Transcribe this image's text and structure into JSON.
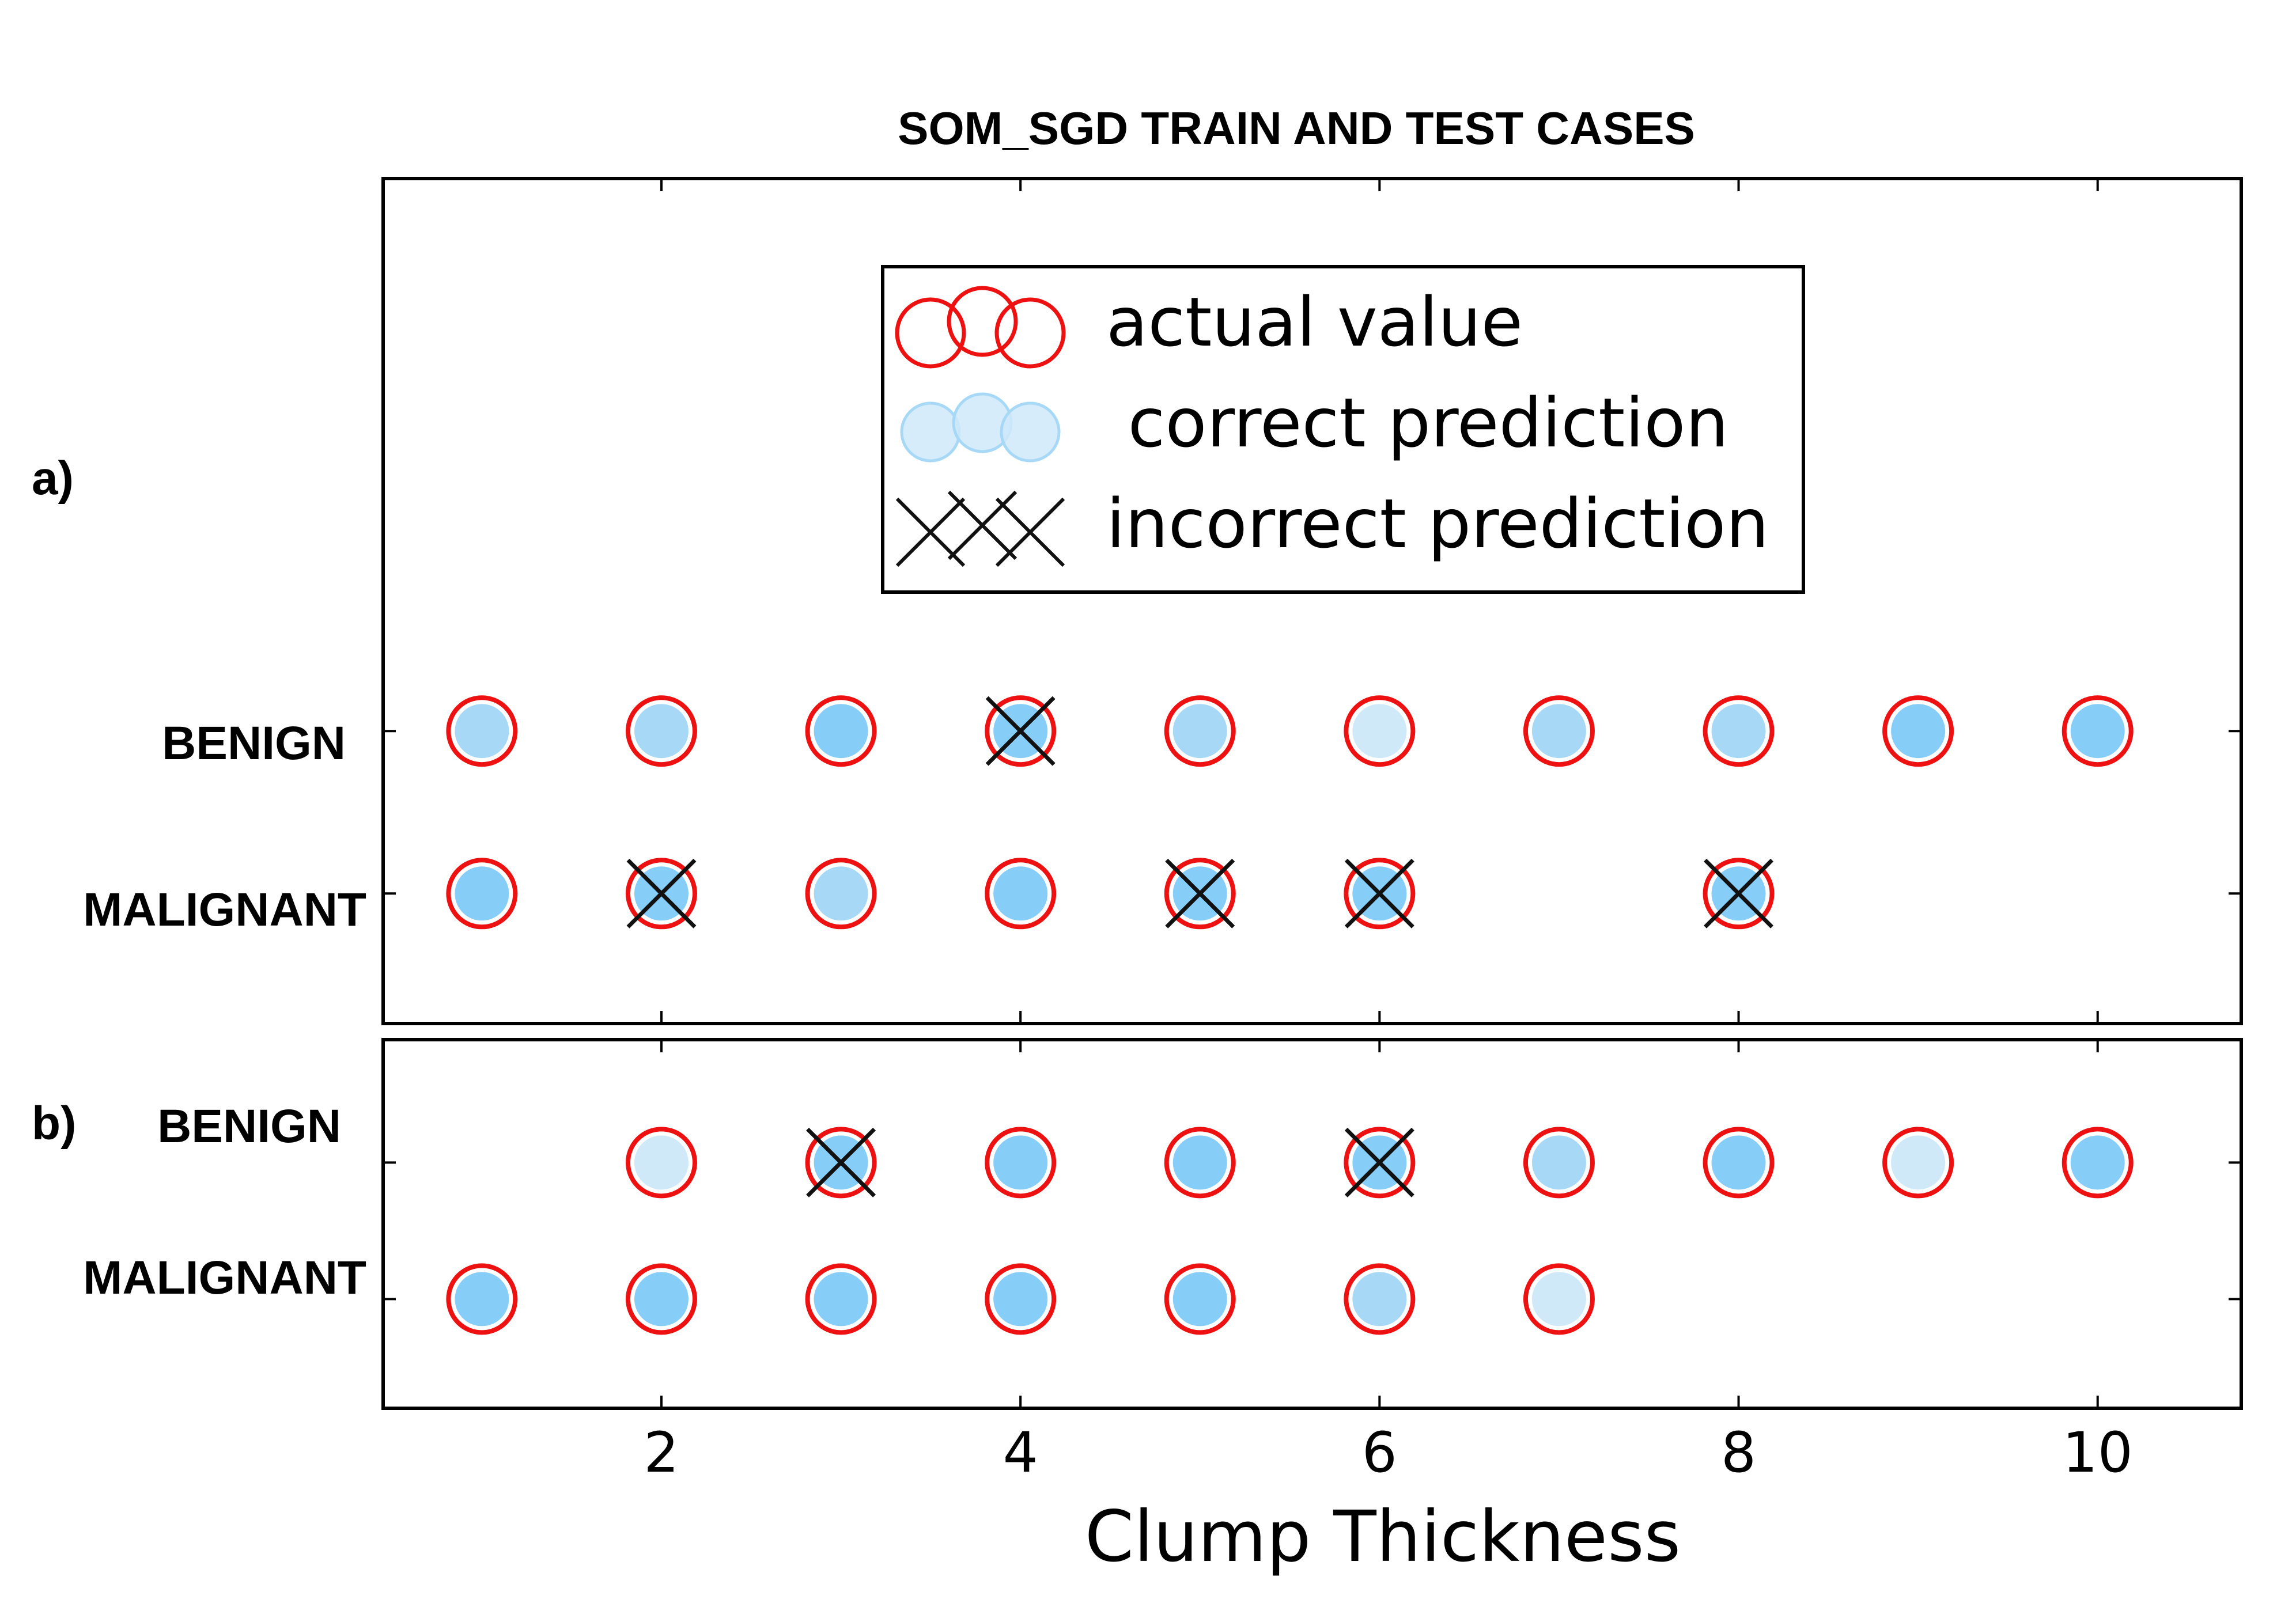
{
  "chart_data": {
    "type": "scatter",
    "title": "SOM_SGD TRAIN AND TEST CASES",
    "xlabel": "Clump Thickness",
    "xlim": [
      0.45,
      10.8
    ],
    "xticks": [
      2,
      4,
      6,
      8,
      10
    ],
    "categories": [
      "BENIGN",
      "MALIGNANT"
    ],
    "legend": {
      "placement": "top-center",
      "entries": [
        {
          "kind": "actual",
          "label": "actual value"
        },
        {
          "kind": "correct",
          "label": " correct prediction"
        },
        {
          "kind": "incorrect",
          "label": "incorrect prediction"
        }
      ]
    },
    "colors": {
      "actual_edge": "#ee1111",
      "fill_dark": "#86cdf7",
      "fill_medium": "#a7d9f7",
      "fill_light": "#cfe9f9",
      "cross": "#111111",
      "axis": "#000000"
    },
    "panels": [
      {
        "label": "a)",
        "ylim": [
          -0.8,
          4.4
        ],
        "series": [
          {
            "category": "BENIGN",
            "points": [
              {
                "x": 1,
                "shade": "medium",
                "incorrect": false
              },
              {
                "x": 2,
                "shade": "medium",
                "incorrect": false
              },
              {
                "x": 3,
                "shade": "dark",
                "incorrect": false
              },
              {
                "x": 4,
                "shade": "dark",
                "incorrect": true
              },
              {
                "x": 5,
                "shade": "medium",
                "incorrect": false
              },
              {
                "x": 6,
                "shade": "light",
                "incorrect": false
              },
              {
                "x": 7,
                "shade": "medium",
                "incorrect": false
              },
              {
                "x": 8,
                "shade": "medium",
                "incorrect": false
              },
              {
                "x": 9,
                "shade": "dark",
                "incorrect": false
              },
              {
                "x": 10,
                "shade": "dark",
                "incorrect": false
              }
            ]
          },
          {
            "category": "MALIGNANT",
            "points": [
              {
                "x": 1,
                "shade": "dark",
                "incorrect": false
              },
              {
                "x": 2,
                "shade": "dark",
                "incorrect": true
              },
              {
                "x": 3,
                "shade": "medium",
                "incorrect": false
              },
              {
                "x": 4,
                "shade": "dark",
                "incorrect": false
              },
              {
                "x": 5,
                "shade": "dark",
                "incorrect": true
              },
              {
                "x": 6,
                "shade": "dark",
                "incorrect": true
              },
              {
                "x": 8,
                "shade": "dark",
                "incorrect": true
              }
            ]
          }
        ]
      },
      {
        "label": "b)",
        "ylim": [
          -0.8,
          1.9
        ],
        "series": [
          {
            "category": "BENIGN",
            "points": [
              {
                "x": 2,
                "shade": "light",
                "incorrect": false
              },
              {
                "x": 3,
                "shade": "dark",
                "incorrect": true
              },
              {
                "x": 4,
                "shade": "dark",
                "incorrect": false
              },
              {
                "x": 5,
                "shade": "dark",
                "incorrect": false
              },
              {
                "x": 6,
                "shade": "dark",
                "incorrect": true
              },
              {
                "x": 7,
                "shade": "medium",
                "incorrect": false
              },
              {
                "x": 8,
                "shade": "dark",
                "incorrect": false
              },
              {
                "x": 9,
                "shade": "light",
                "incorrect": false
              },
              {
                "x": 10,
                "shade": "dark",
                "incorrect": false
              }
            ]
          },
          {
            "category": "MALIGNANT",
            "points": [
              {
                "x": 1,
                "shade": "dark",
                "incorrect": false
              },
              {
                "x": 2,
                "shade": "dark",
                "incorrect": false
              },
              {
                "x": 3,
                "shade": "dark",
                "incorrect": false
              },
              {
                "x": 4,
                "shade": "dark",
                "incorrect": false
              },
              {
                "x": 5,
                "shade": "dark",
                "incorrect": false
              },
              {
                "x": 6,
                "shade": "medium",
                "incorrect": false
              },
              {
                "x": 7,
                "shade": "light",
                "incorrect": false
              }
            ]
          }
        ]
      }
    ]
  }
}
